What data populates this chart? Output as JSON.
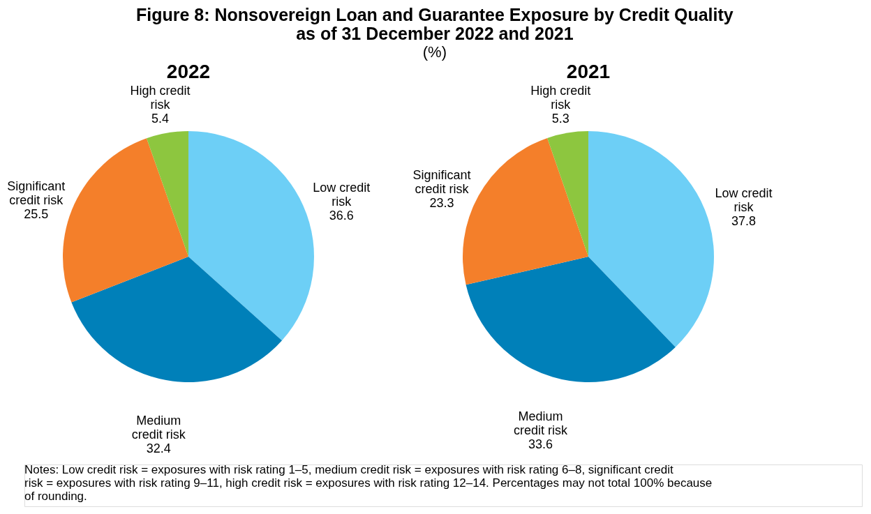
{
  "chart_data": [
    {
      "type": "pie",
      "title": "2022",
      "categories": [
        "Low credit risk",
        "Medium credit risk",
        "Significant credit risk",
        "High credit risk"
      ],
      "values": [
        36.6,
        32.4,
        25.5,
        5.4
      ],
      "colors": [
        "#6dcff6",
        "#0080b9",
        "#f47f2a",
        "#8dc63f"
      ],
      "data_labels": true,
      "legend": false,
      "annotations": [
        "Figure 8: Nonsovereign Loan and Guarantee Exposure by Credit Quality as of 31 December 2022 and 2021",
        "(%)",
        "Notes: Low credit risk = exposures with risk rating 1–5, medium credit risk = exposures with risk rating 6–8, significant credit risk = exposures with risk rating 9–11, high credit risk = exposures with risk rating 12–14. Percentages may not total 100% because of rounding."
      ]
    },
    {
      "type": "pie",
      "title": "2021",
      "categories": [
        "Low credit risk",
        "Medium credit risk",
        "Significant credit risk",
        "High credit risk"
      ],
      "values": [
        37.8,
        33.6,
        23.3,
        5.3
      ],
      "colors": [
        "#6dcff6",
        "#0080b9",
        "#f47f2a",
        "#8dc63f"
      ],
      "data_labels": true,
      "legend": false
    }
  ]
}
